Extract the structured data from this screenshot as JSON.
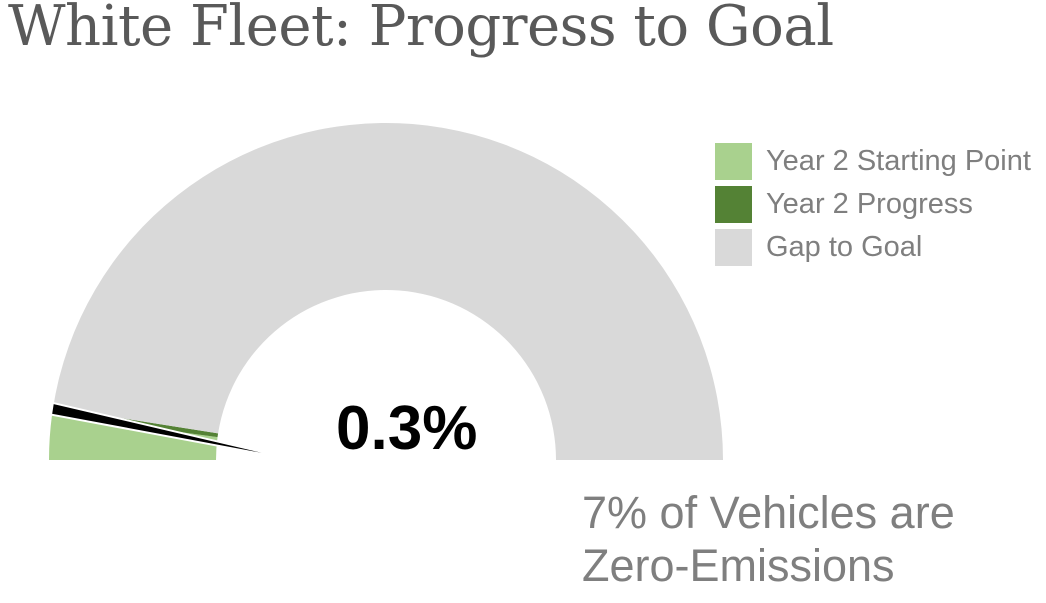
{
  "title": "White Fleet: Progress to Goal",
  "chart_data": {
    "type": "gauge",
    "title": "White Fleet: Progress to Goal",
    "value_label": "0.3%",
    "caption_lines": [
      "7% of Vehicles are",
      "Zero-Emissions"
    ],
    "series": [
      {
        "name": "Year 2 Starting Point",
        "value": 0.3,
        "color": "#a9d18e"
      },
      {
        "name": "Year 2 Progress",
        "value": 0.05,
        "color": "#548235"
      },
      {
        "name": "Gap to Goal",
        "value": 6.65,
        "color": "#d9d9d9"
      }
    ],
    "goal": 7,
    "needle_value": 0.3,
    "needle_color": "#000000",
    "legend_position": "top-right"
  }
}
